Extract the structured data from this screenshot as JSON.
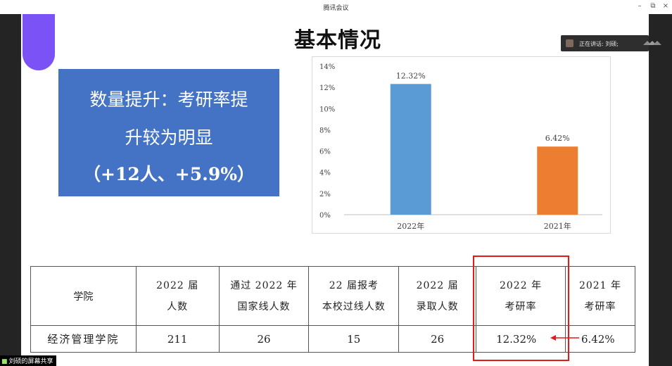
{
  "app": {
    "title": "腾讯会议",
    "controls": {
      "minimize": "–",
      "restore": "⧉",
      "close": "×"
    }
  },
  "slide": {
    "title": "基本情况",
    "highlight": {
      "line1": "数量提升：考研率提",
      "line2": "升较为明显",
      "line3": "（+12人、+5.9%）",
      "bg_color": "#4472c4"
    }
  },
  "chart_data": {
    "type": "bar",
    "categories": [
      "2022年",
      "2021年"
    ],
    "values": [
      12.32,
      6.42
    ],
    "data_labels": [
      "12.32%",
      "6.42%"
    ],
    "colors": [
      "#5b9bd5",
      "#ed7d31"
    ],
    "y_ticks": [
      "0%",
      "2%",
      "4%",
      "6%",
      "8%",
      "10%",
      "12%",
      "14%"
    ],
    "ylim": [
      0,
      14
    ],
    "grid": false,
    "title": "",
    "xlabel": "",
    "ylabel": ""
  },
  "table": {
    "header": {
      "college": "学院",
      "col1": [
        "2022 届",
        "人数"
      ],
      "col2": [
        "通过 2022 年",
        "国家线人数"
      ],
      "col3": [
        "22 届报考",
        "本校过线人数"
      ],
      "col4": [
        "2022 届",
        "录取人数"
      ],
      "col5": [
        "2022 年",
        "考研率"
      ],
      "col6": [
        "2021 年",
        "考研率"
      ]
    },
    "row": {
      "college": "经济管理学院",
      "count_2022": "211",
      "passed_national": "26",
      "passed_local": "15",
      "admitted": "26",
      "rate_2022": "12.32%",
      "rate_2021": "6.42%"
    }
  },
  "overlay": {
    "speaking": "正在讲话: 刘硕;",
    "share_label": "刘硕的屏幕共享",
    "share_icon": "screen-share-icon",
    "arrow_color": "#e31a1a"
  }
}
